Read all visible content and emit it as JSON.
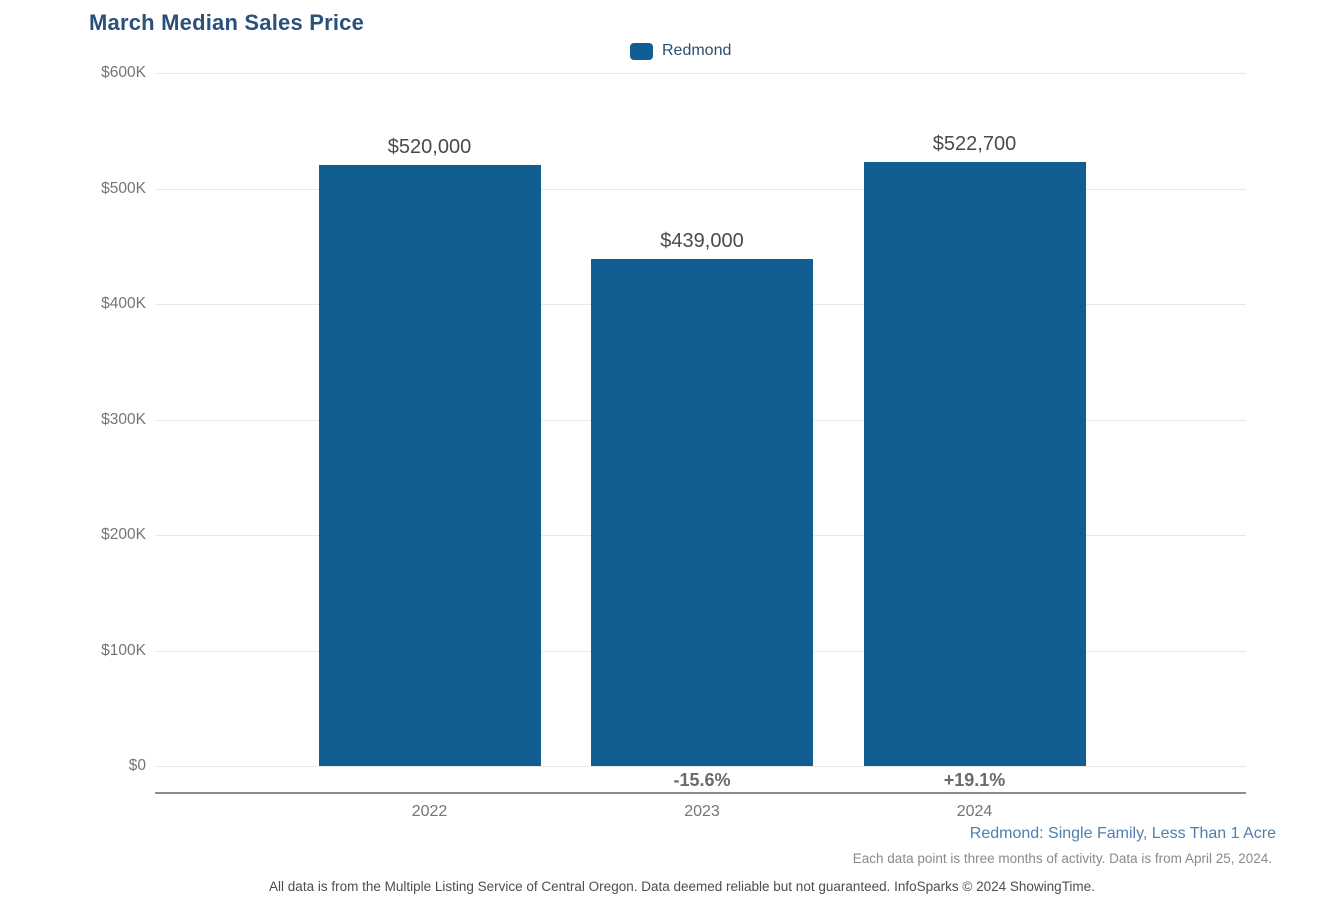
{
  "chart": {
    "title": "March Median Sales Price",
    "legend": {
      "label": "Redmond"
    },
    "y_ticks": [
      "$600K",
      "$500K",
      "$400K",
      "$300K",
      "$200K",
      "$100K",
      "$0"
    ]
  },
  "chart_data": {
    "type": "bar",
    "title": "March Median Sales Price",
    "categories": [
      "2022",
      "2023",
      "2024"
    ],
    "series": [
      {
        "name": "Redmond",
        "values": [
          520000,
          439000,
          522700
        ]
      }
    ],
    "value_labels": [
      "$520,000",
      "$439,000",
      "$522,700"
    ],
    "pct_change_labels": [
      "",
      "-15.6%",
      "+19.1%"
    ],
    "xlabel": "",
    "ylabel": "",
    "ylim": [
      0,
      600000
    ],
    "y_tick_step": 100000,
    "grid": true,
    "legend_position": "top-center"
  },
  "footer": {
    "series_note": "Redmond: Single Family, Less Than 1 Acre",
    "data_note": "Each data point is three months of activity. Data is from April 25, 2024.",
    "disclaimer": "All data is from the Multiple Listing Service of Central Oregon. Data deemed reliable but not guaranteed. InfoSparks © 2024 ShowingTime."
  },
  "colors": {
    "bar": "#115e92",
    "title_text": "#2a517a",
    "legend_text": "#2d4f6e",
    "grid_line": "#e8e8e8",
    "axis_line": "#8c8c8c",
    "tick_text": "#757575",
    "value_label_text": "#4a4a4a",
    "pct_text": "#6a6a6a",
    "series_note_text": "#4e7fb1",
    "data_note_text": "#8a8a8a",
    "disclaimer_text": "#4d4d4d"
  }
}
